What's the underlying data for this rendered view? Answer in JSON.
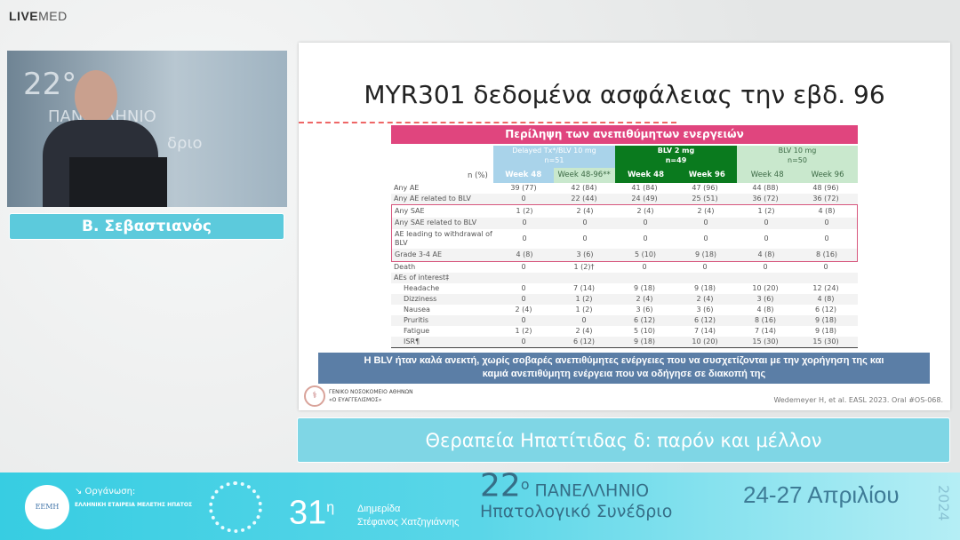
{
  "brand": {
    "logo_a": "LIVE",
    "logo_b": "MED"
  },
  "video": {
    "bg_t1": "22°",
    "bg_t2": "ΠΑΝΕΛΛΗΝΙΟ",
    "bg_t3": "δριο"
  },
  "speaker_name": "Β. Σεβαστιανός",
  "slide": {
    "title": "MYR301 δεδομένα ασφάλειας την εβδ. 96",
    "table_title": "Περίληψη των ανεπιθύμητων ενεργειών",
    "n_label": "n (%)",
    "groups": [
      {
        "name": "Delayed Tx*/BLV 10 mg",
        "n": "n=51"
      },
      {
        "name": "BLV 2 mg",
        "n": "n=49"
      },
      {
        "name": "BLV 10 mg",
        "n": "n=50"
      }
    ],
    "subheaders": [
      "Week 48",
      "Week 48-96**",
      "Week 48",
      "Week 96",
      "Week 48",
      "Week 96"
    ],
    "rows": [
      {
        "label": "Any AE",
        "v": [
          "39 (77)",
          "42 (84)",
          "41 (84)",
          "47 (96)",
          "44 (88)",
          "48 (96)"
        ]
      },
      {
        "label": "Any AE related to BLV",
        "v": [
          "0",
          "22 (44)",
          "24 (49)",
          "25 (51)",
          "36 (72)",
          "36 (72)"
        ]
      },
      {
        "label": "Any SAE",
        "v": [
          "1 (2)",
          "2 (4)",
          "2 (4)",
          "2 (4)",
          "1 (2)",
          "4 (8)"
        ],
        "boxed": true
      },
      {
        "label": "Any SAE related to BLV",
        "v": [
          "0",
          "0",
          "0",
          "0",
          "0",
          "0"
        ],
        "boxed": true
      },
      {
        "label": "AE leading to withdrawal of BLV",
        "v": [
          "0",
          "0",
          "0",
          "0",
          "0",
          "0"
        ],
        "boxed": true
      },
      {
        "label": "Grade 3-4 AE",
        "v": [
          "4 (8)",
          "3 (6)",
          "5 (10)",
          "9 (18)",
          "4 (8)",
          "8 (16)"
        ],
        "boxed": true
      },
      {
        "label": "Death",
        "v": [
          "0",
          "1 (2)†",
          "0",
          "0",
          "0",
          "0"
        ]
      },
      {
        "label": "AEs of interest‡",
        "v": [
          "",
          "",
          "",
          "",
          "",
          ""
        ]
      },
      {
        "label": "Headache",
        "v": [
          "0",
          "7 (14)",
          "9 (18)",
          "9 (18)",
          "10 (20)",
          "12 (24)"
        ],
        "indent": true
      },
      {
        "label": "Dizziness",
        "v": [
          "0",
          "1 (2)",
          "2 (4)",
          "2 (4)",
          "3 (6)",
          "4 (8)"
        ],
        "indent": true
      },
      {
        "label": "Nausea",
        "v": [
          "2 (4)",
          "1 (2)",
          "3 (6)",
          "3 (6)",
          "4 (8)",
          "6 (12)"
        ],
        "indent": true
      },
      {
        "label": "Pruritis",
        "v": [
          "0",
          "0",
          "6 (12)",
          "6 (12)",
          "8 (16)",
          "9 (18)"
        ],
        "indent": true
      },
      {
        "label": "Fatigue",
        "v": [
          "1 (2)",
          "2 (4)",
          "5 (10)",
          "7 (14)",
          "7 (14)",
          "9 (18)"
        ],
        "indent": true
      },
      {
        "label": "ISR¶",
        "v": [
          "0",
          "6 (12)",
          "9 (18)",
          "10 (20)",
          "15 (30)",
          "15 (30)"
        ],
        "indent": true
      }
    ],
    "banner_line1": "Η BLV ήταν καλά ανεκτή, χωρίς σοβαρές ανεπιθύμητες ενέργειες που να συσχετίζονται με την χορήγηση της και",
    "banner_line2": "καμιά ανεπιθύμητη ενέργεια που να οδήγησε σε διακοπή της",
    "hospital_line1": "ΓΕΝΙΚΟ ΝΟΣΟΚΟΜΕΙΟ ΑΘΗΝΩΝ",
    "hospital_line2": "«Ο ΕΥΑΓΓΕΛΙΣΜΟΣ»",
    "citation": "Wedemeyer H, et al. EASL 2023. Oral #OS-068."
  },
  "talk_title": "Θεραπεία Ηπατίτιδας δ: παρόν και μέλλον",
  "footer": {
    "society_logo": "ΕΕΜΗ",
    "organizer_label": "↘ Οργάνωση:",
    "organizer": "ΕΛΛΗΝΙΚΗ ΕΤΑΙΡΕΙΑ ΜΕΛΕΤΗΣ ΗΠΑΤΟΣ",
    "num": "31",
    "num_sup": "η",
    "event_line1": "Διημερίδα",
    "event_line2": "Στέφανος Χατζηγιάννης",
    "congress_num": "22",
    "congress_sup": "ο",
    "congress_line1": "ΠΑΝΕΛΛΗΝΙΟ",
    "congress_line2": "Ηπατολογικό Συνέδριο",
    "dates": "24-27 Απριλίου",
    "year": "2024"
  },
  "colors": {
    "pink": "#e0457e",
    "dark_green": "#0a7a1e",
    "light_green": "#c9e8cd",
    "light_blue": "#a9d3ea",
    "banner": "#5b7ea6",
    "cyan": "#5ccadc"
  }
}
